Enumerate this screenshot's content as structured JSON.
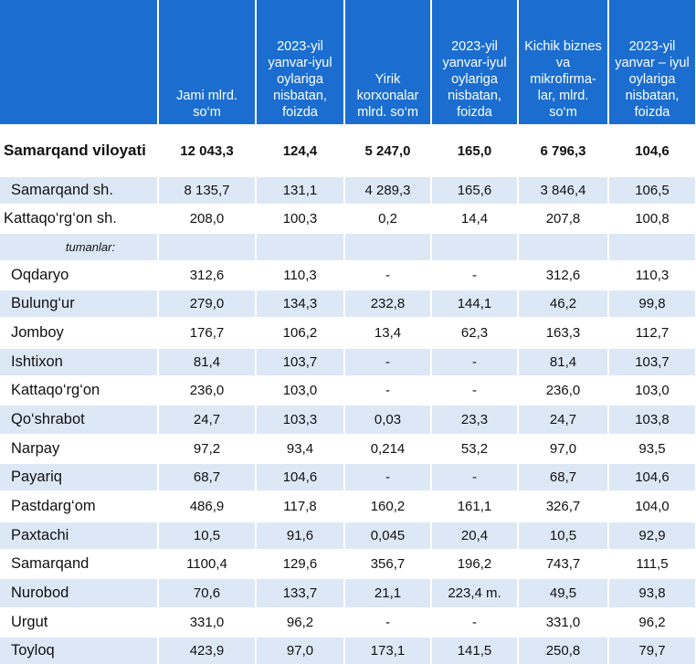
{
  "headers": [
    "",
    "Jami mlrd. so‘m",
    "2023-yil yanvar-iyul oylariga nisbatan, foizda",
    "Yirik korxonalar mlrd. so‘m",
    "2023-yil yanvar-iyul oylariga nisbatan, foizda",
    "Kichik biznes va mikrofirma-lar, mlrd. so‘m",
    "2023-yil yanvar – iyul oylariga nisbatan, foizda"
  ],
  "total": [
    "Samarqand viloyati",
    "12 043,3",
    "124,4",
    "5 247,0",
    "165,0",
    "6 796,3",
    "104,6"
  ],
  "cities": [
    [
      "Samarqand sh.",
      "8 135,7",
      "131,1",
      "4 289,3",
      "165,6",
      "3 846,4",
      "106,5"
    ],
    [
      "Kattaqo‘rg‘on sh.",
      "208,0",
      "100,3",
      "0,2",
      "14,4",
      "207,8",
      "100,8"
    ]
  ],
  "subheader": "tumanlar:",
  "districts": [
    [
      "Oqdaryo",
      "312,6",
      "110,3",
      "-",
      "-",
      "312,6",
      "110,3"
    ],
    [
      "Bulung‘ur",
      "279,0",
      "134,3",
      "232,8",
      "144,1",
      "46,2",
      "99,8"
    ],
    [
      "Jomboy",
      "176,7",
      "106,2",
      "13,4",
      "62,3",
      "163,3",
      "112,7"
    ],
    [
      "Ishtixon",
      "81,4",
      "103,7",
      "-",
      "-",
      "81,4",
      "103,7"
    ],
    [
      "Kattaqo‘rg‘on",
      "236,0",
      "103,0",
      "-",
      "-",
      "236,0",
      "103,0"
    ],
    [
      "Qo‘shrabot",
      "24,7",
      "103,3",
      "0,03",
      "23,3",
      "24,7",
      "103,8"
    ],
    [
      "Narpay",
      "97,2",
      "93,4",
      "0,214",
      "53,2",
      "97,0",
      "93,5"
    ],
    [
      "Payariq",
      "68,7",
      "104,6",
      "-",
      "-",
      "68,7",
      "104,6"
    ],
    [
      "Pastdarg‘om",
      "486,9",
      "117,8",
      "160,2",
      "161,1",
      "326,7",
      "104,0"
    ],
    [
      "Paxtachi",
      "10,5",
      "91,6",
      "0,045",
      "20,4",
      "10,5",
      "92,9"
    ],
    [
      "Samarqand",
      "1100,4",
      "129,6",
      "356,7",
      "196,2",
      "743,7",
      "111,5"
    ],
    [
      "Nurobod",
      "70,6",
      "133,7",
      "21,1",
      "223,4 m.",
      "49,5",
      "93,8"
    ],
    [
      "Urgut",
      "331,0",
      "96,2",
      "-",
      "-",
      "331,0",
      "96,2"
    ],
    [
      "Toyloq",
      "423,9",
      "97,0",
      "173,1",
      "141,5",
      "250,8",
      "79,7"
    ]
  ]
}
